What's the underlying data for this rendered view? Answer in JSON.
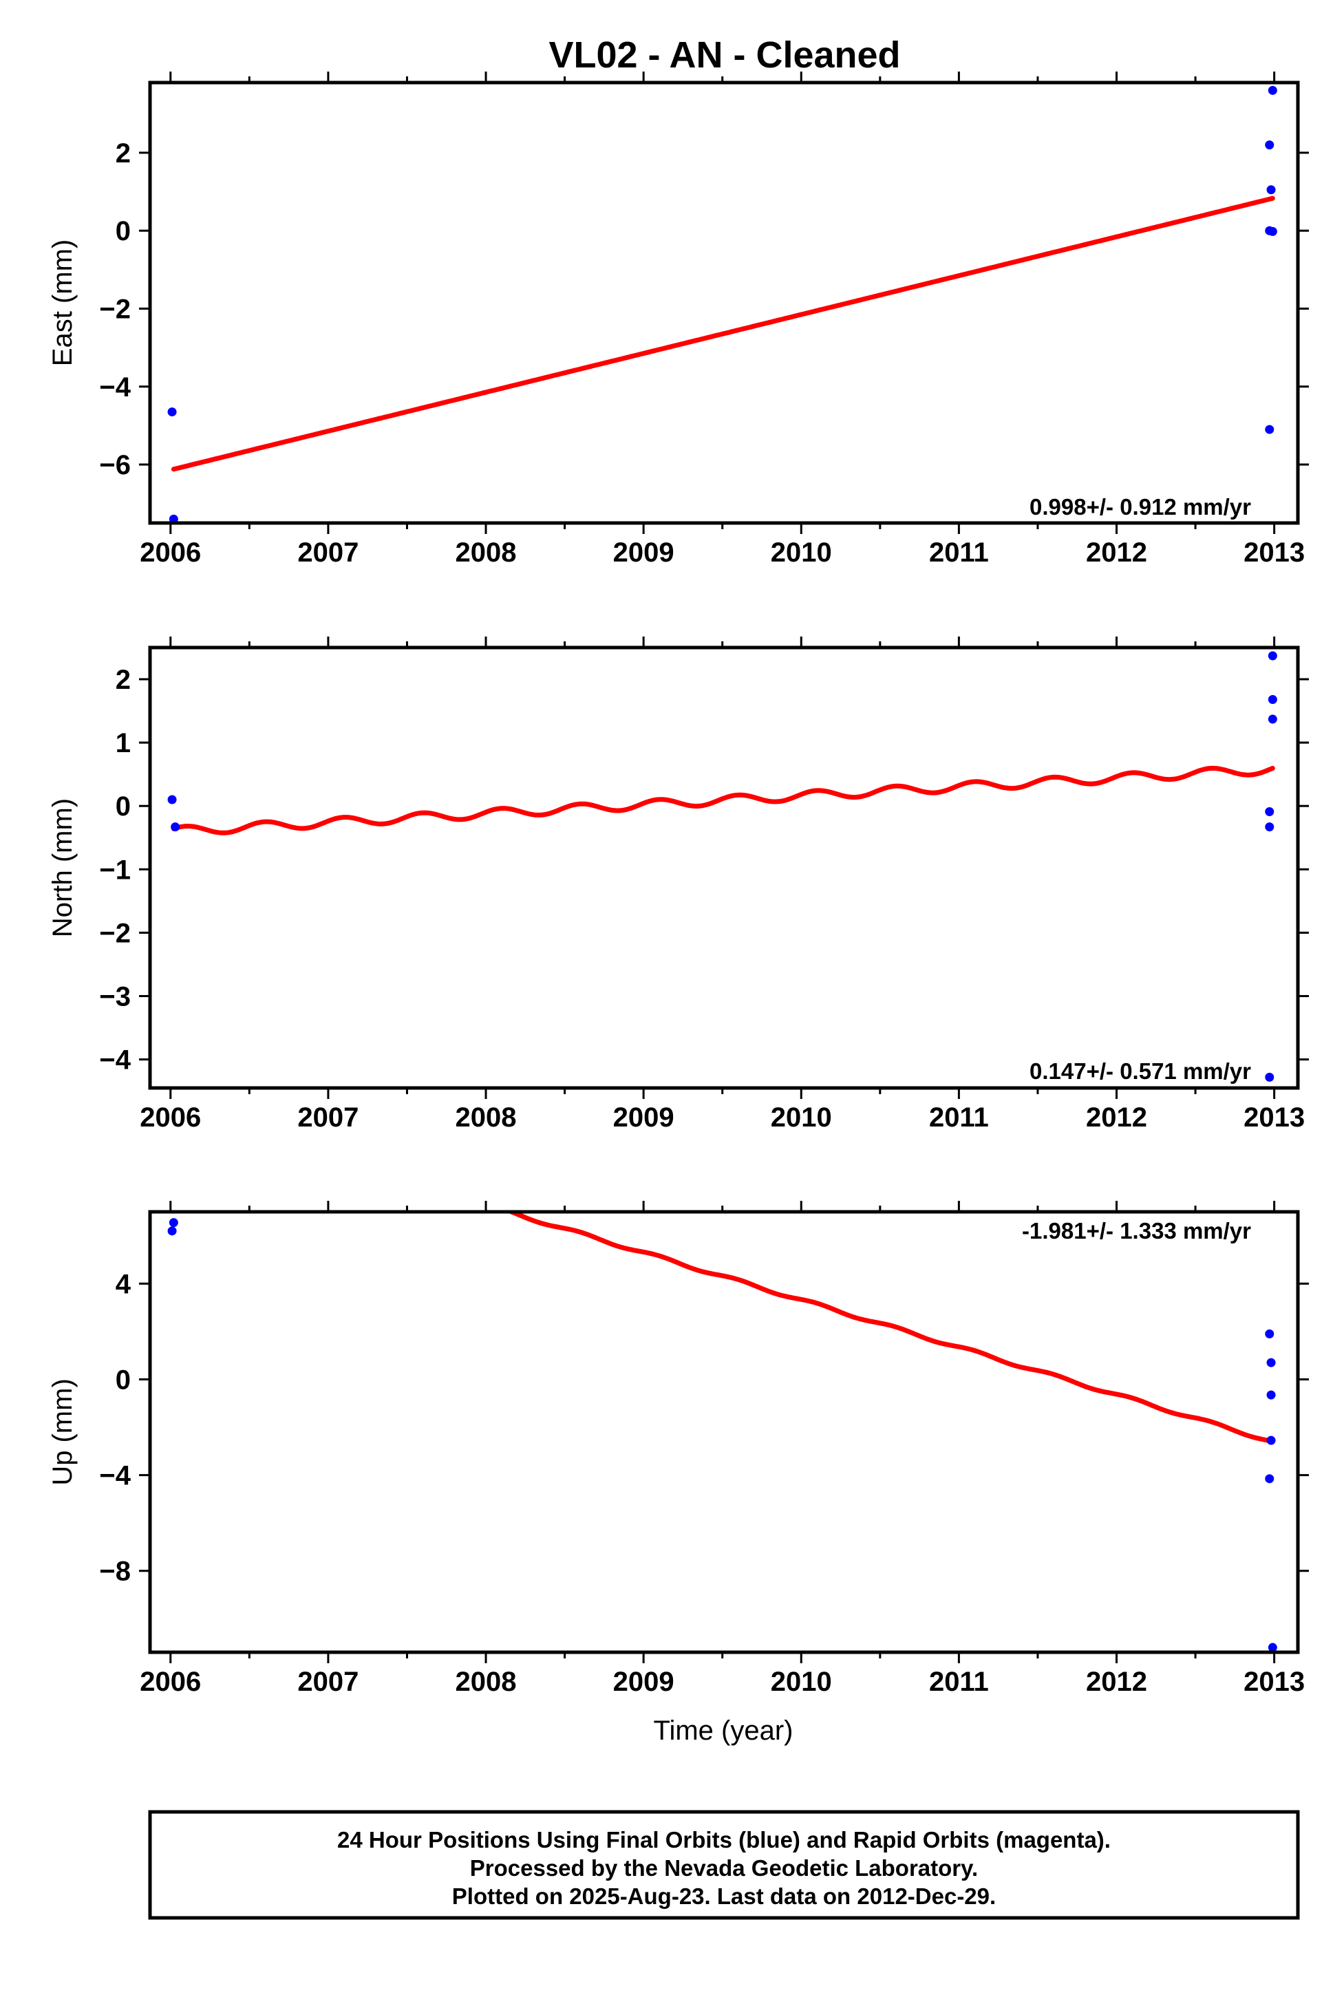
{
  "title": "VL02  - AN - Cleaned",
  "footer": {
    "lines": [
      "24 Hour Positions Using Final Orbits (blue) and Rapid Orbits (magenta).",
      "Processed by the Nevada Geodetic Laboratory.",
      "Plotted on 2025-Aug-23. Last data on 2012-Dec-29."
    ]
  },
  "colors": {
    "points": "#0000ff",
    "trend": "#ff0000",
    "frame": "#000000"
  },
  "chart_data": [
    {
      "type": "scatter",
      "title": "",
      "xlabel": "",
      "ylabel": "East (mm)",
      "xlim": [
        2005.87,
        2013.15
      ],
      "ylim": [
        -7.5,
        3.8
      ],
      "xticks": [
        2006,
        2007,
        2008,
        2009,
        2010,
        2011,
        2012,
        2013
      ],
      "xtick_labels": [
        "2006",
        "2007",
        "2008",
        "2009",
        "2010",
        "2011",
        "2012",
        "2013"
      ],
      "yticks": [
        2,
        0,
        -2,
        -4,
        -6
      ],
      "ytick_labels": [
        "2",
        "0",
        "−2",
        "−4",
        "−6"
      ],
      "annotation": "0.998+/- 0.912 mm/yr",
      "annotation_position": "bottom-right",
      "points": [
        {
          "x": 2006.01,
          "y": -4.65
        },
        {
          "x": 2006.02,
          "y": -7.4
        },
        {
          "x": 2012.97,
          "y": 2.2
        },
        {
          "x": 2012.98,
          "y": 1.05
        },
        {
          "x": 2012.97,
          "y": 0.0
        },
        {
          "x": 2012.99,
          "y": -0.02
        },
        {
          "x": 2012.97,
          "y": -5.1
        },
        {
          "x": 2012.99,
          "y": 3.6
        }
      ],
      "trend": {
        "x_start": 2006.02,
        "y_start": -6.12,
        "x_end": 2012.99,
        "y_end": 0.83,
        "seasonal_amplitude": 0.0
      }
    },
    {
      "type": "scatter",
      "title": "",
      "xlabel": "",
      "ylabel": "North (mm)",
      "xlim": [
        2005.87,
        2013.15
      ],
      "ylim": [
        -4.45,
        2.5
      ],
      "xticks": [
        2006,
        2007,
        2008,
        2009,
        2010,
        2011,
        2012,
        2013
      ],
      "xtick_labels": [
        "2006",
        "2007",
        "2008",
        "2009",
        "2010",
        "2011",
        "2012",
        "2013"
      ],
      "yticks": [
        2,
        1,
        0,
        -1,
        -2,
        -3,
        -4
      ],
      "ytick_labels": [
        "2",
        "1",
        "0",
        "−1",
        "−2",
        "−3",
        "−4"
      ],
      "annotation": "0.147+/- 0.571 mm/yr",
      "annotation_position": "bottom-right",
      "points": [
        {
          "x": 2006.01,
          "y": 0.1
        },
        {
          "x": 2006.03,
          "y": -0.33
        },
        {
          "x": 2012.99,
          "y": 2.37
        },
        {
          "x": 2012.99,
          "y": 1.68
        },
        {
          "x": 2012.99,
          "y": 1.37
        },
        {
          "x": 2012.97,
          "y": -0.09
        },
        {
          "x": 2012.97,
          "y": -0.33
        },
        {
          "x": 2012.97,
          "y": -4.28
        }
      ],
      "trend": {
        "x_start": 2006.02,
        "y_start": -0.4,
        "x_end": 2012.99,
        "y_end": 0.58,
        "seasonal_amplitude": 0.07
      }
    },
    {
      "type": "scatter",
      "title": "",
      "xlabel": "Time (year)",
      "ylabel": "Up (mm)",
      "xlim": [
        2005.87,
        2013.15
      ],
      "ylim": [
        -11.4,
        7.0
      ],
      "xticks": [
        2006,
        2007,
        2008,
        2009,
        2010,
        2011,
        2012,
        2013
      ],
      "xtick_labels": [
        "2006",
        "2007",
        "2008",
        "2009",
        "2010",
        "2011",
        "2012",
        "2013"
      ],
      "yticks": [
        4,
        0,
        -4,
        -8
      ],
      "ytick_labels": [
        "4",
        "0",
        "−4",
        "−8"
      ],
      "annotation": "-1.981+/- 1.333 mm/yr",
      "annotation_position": "top-right",
      "points": [
        {
          "x": 2006.02,
          "y": 6.55
        },
        {
          "x": 2006.01,
          "y": 6.2
        },
        {
          "x": 2012.97,
          "y": 1.9
        },
        {
          "x": 2012.98,
          "y": 0.7
        },
        {
          "x": 2012.98,
          "y": -0.65
        },
        {
          "x": 2012.98,
          "y": -2.55
        },
        {
          "x": 2012.97,
          "y": -4.15
        },
        {
          "x": 2012.99,
          "y": -11.2
        }
      ],
      "trend": {
        "x_start": 2006.02,
        "y_start": 11.2,
        "x_end": 2012.99,
        "y_end": -2.6,
        "seasonal_amplitude": 0.06
      }
    }
  ]
}
